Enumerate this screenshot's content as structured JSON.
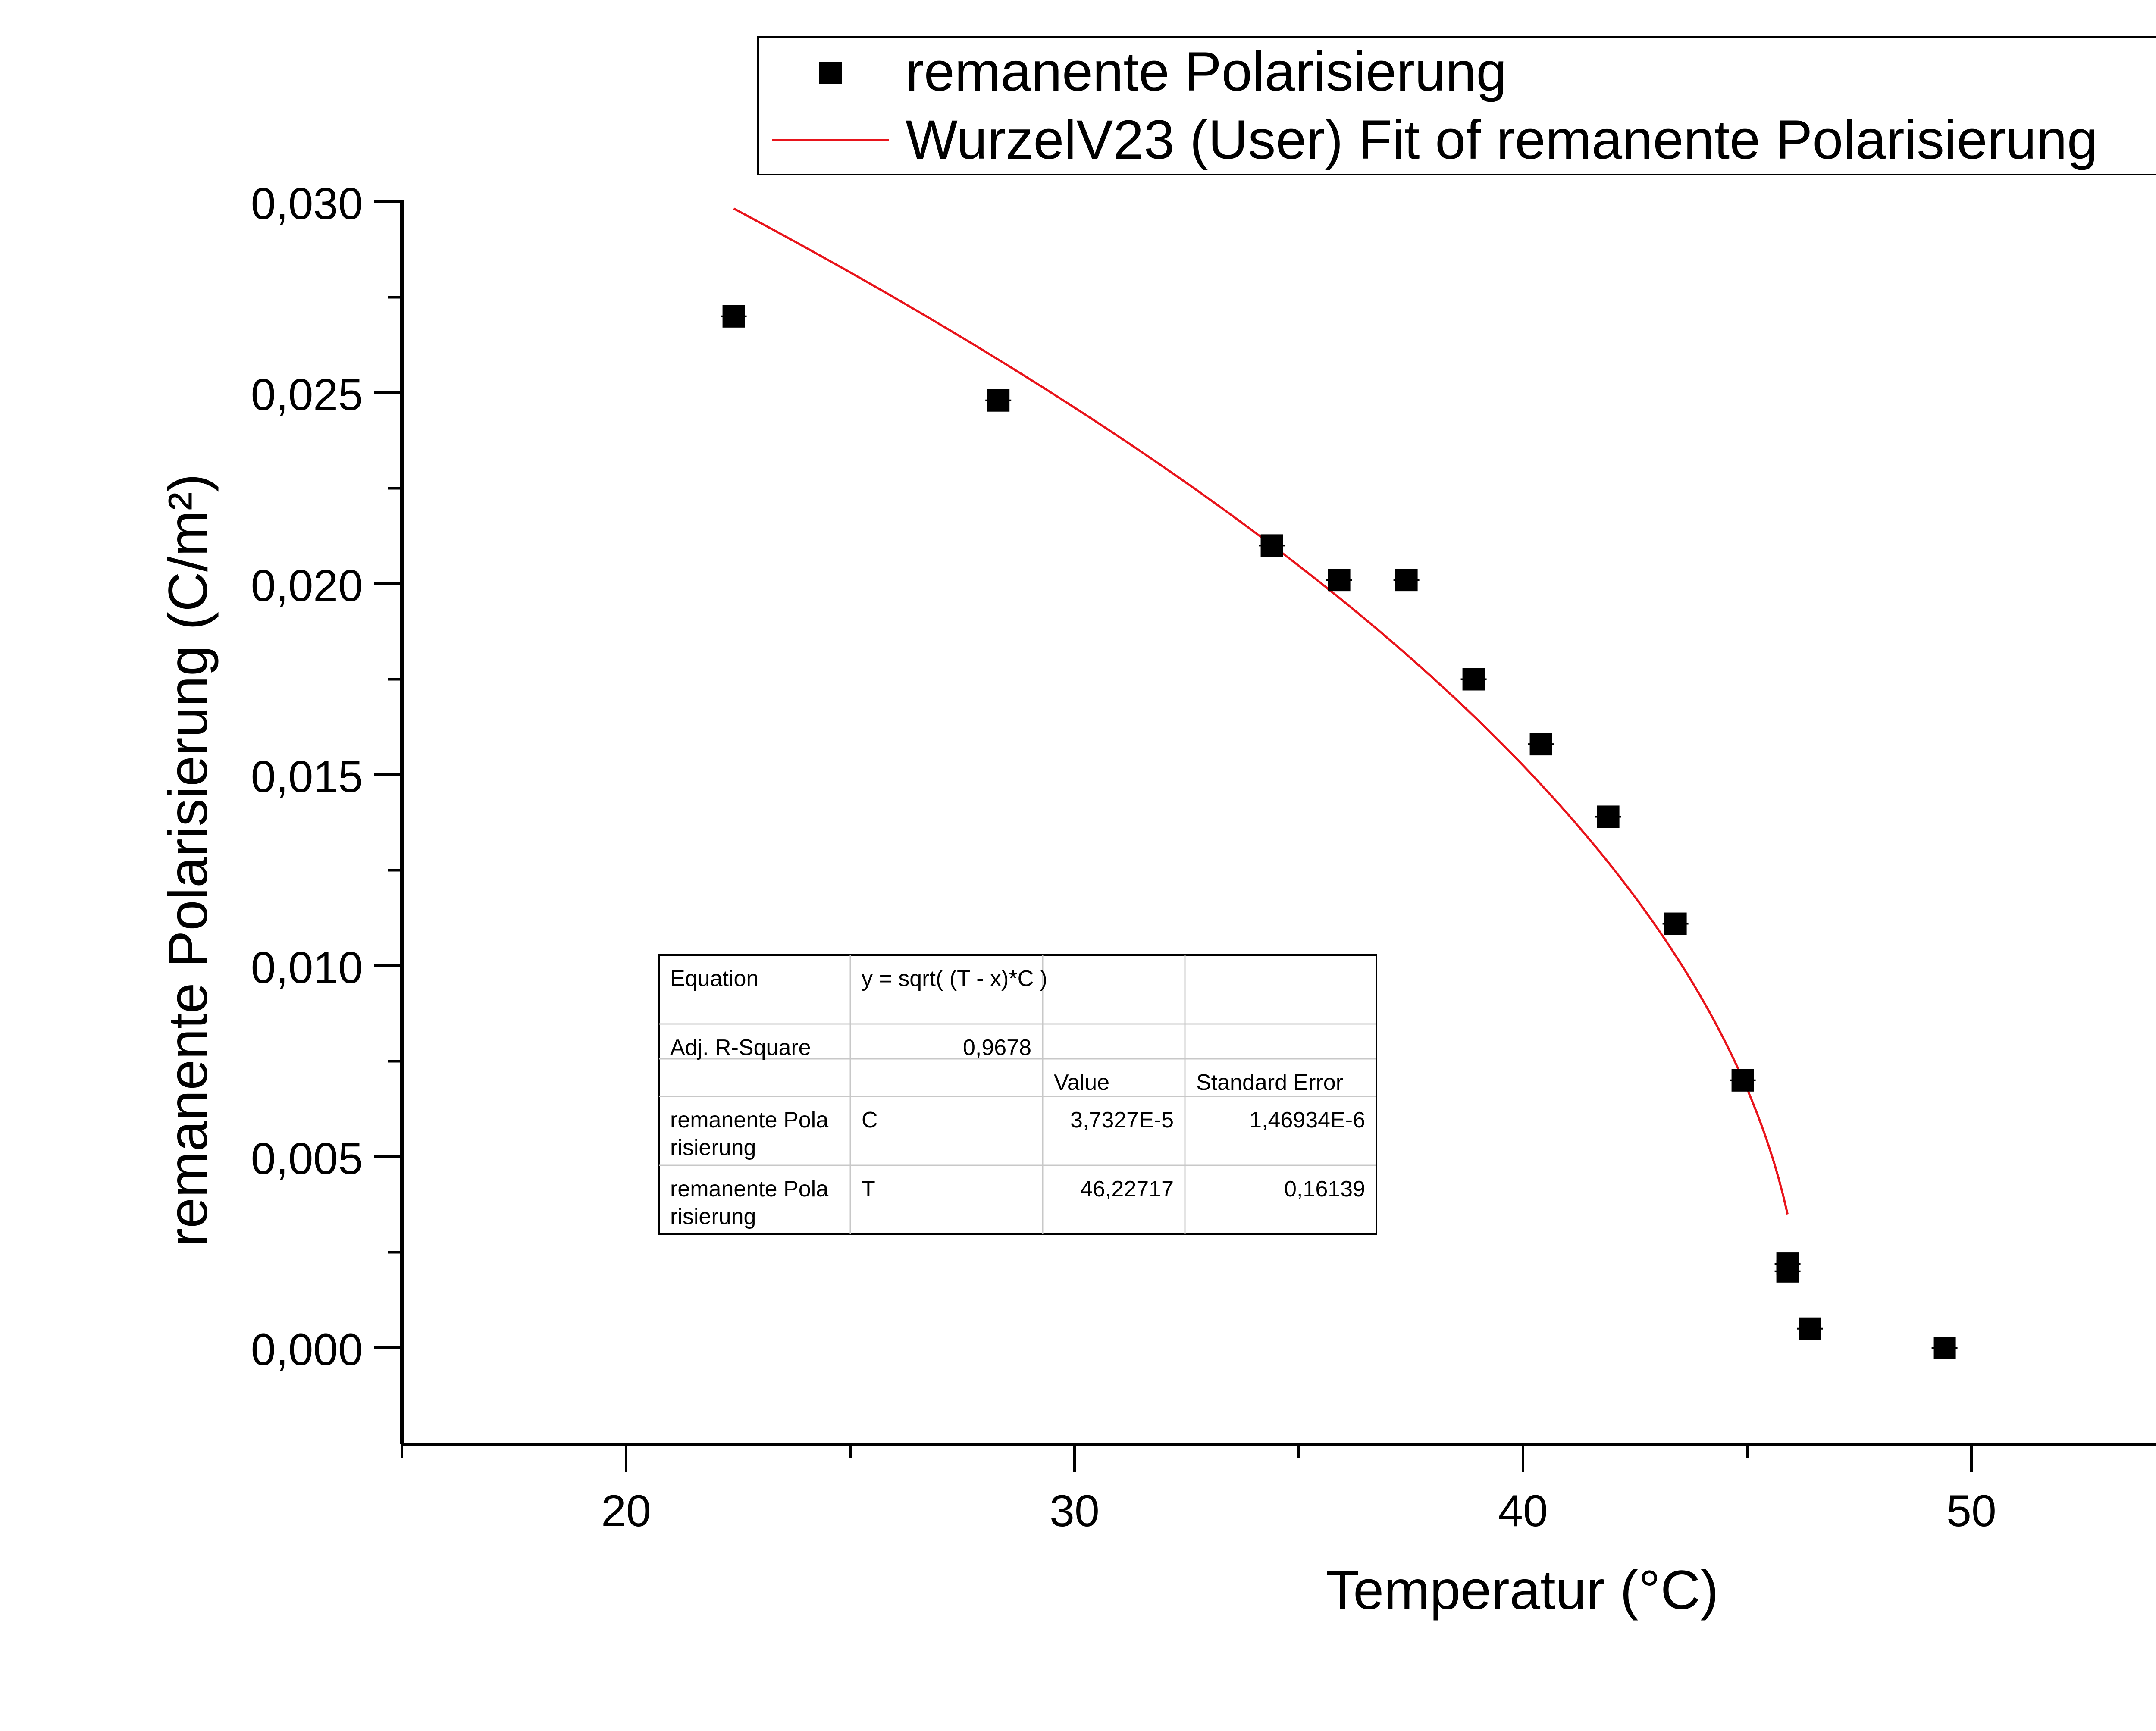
{
  "chart_data": {
    "type": "scatter",
    "xlabel": "Temperatur (°C)",
    "ylabel": "remanente Polarisierung (C/m²)",
    "xlim": [
      15,
      56
    ],
    "ylim": [
      -0.0025,
      0.03
    ],
    "x_ticks": [
      20,
      30,
      40,
      50
    ],
    "x_tick_labels": [
      "20",
      "30",
      "40",
      "50"
    ],
    "y_ticks": [
      0,
      0.005,
      0.01,
      0.015,
      0.02,
      0.025,
      0.03
    ],
    "y_tick_labels": [
      "0,000",
      "0,005",
      "0,010",
      "0,015",
      "0,020",
      "0,025",
      "0,030"
    ],
    "grid": false,
    "legend_position": "top-right",
    "series": [
      {
        "name": "remanente Polarisierung",
        "kind": "scatter",
        "marker": "square",
        "color": "#000000",
        "points": [
          [
            22.4,
            0.027
          ],
          [
            28.3,
            0.0248
          ],
          [
            34.4,
            0.021
          ],
          [
            35.9,
            0.0201
          ],
          [
            37.4,
            0.0201
          ],
          [
            38.9,
            0.0175
          ],
          [
            40.4,
            0.0158
          ],
          [
            41.9,
            0.0139
          ],
          [
            43.4,
            0.0111
          ],
          [
            44.9,
            0.007
          ],
          [
            45.9,
            0.0022
          ],
          [
            45.9,
            0.002
          ],
          [
            46.4,
            0.0005
          ],
          [
            49.4,
            0.0
          ]
        ]
      },
      {
        "name": "WurzelV23 (User) Fit of remanente Polarisierung",
        "kind": "line",
        "color": "#e8141b",
        "function": "y = sqrt( (T - x)*C )",
        "params": {
          "C": 3.7327e-05,
          "T": 46.22717
        },
        "x_range": [
          22.4,
          45.9
        ]
      }
    ],
    "fit_table": {
      "rows": [
        [
          "Equation",
          "y = sqrt( (T - x)*C )",
          "",
          ""
        ],
        [
          "Adj. R-Square",
          "0,9678",
          "",
          ""
        ],
        [
          "",
          "",
          "Value",
          "Standard Error"
        ],
        [
          "remanente Pola risierung",
          "C",
          "3,7327E-5",
          "1,46934E-6"
        ],
        [
          "remanente Pola risierung",
          "T",
          "46,22717",
          "0,16139"
        ]
      ]
    }
  }
}
